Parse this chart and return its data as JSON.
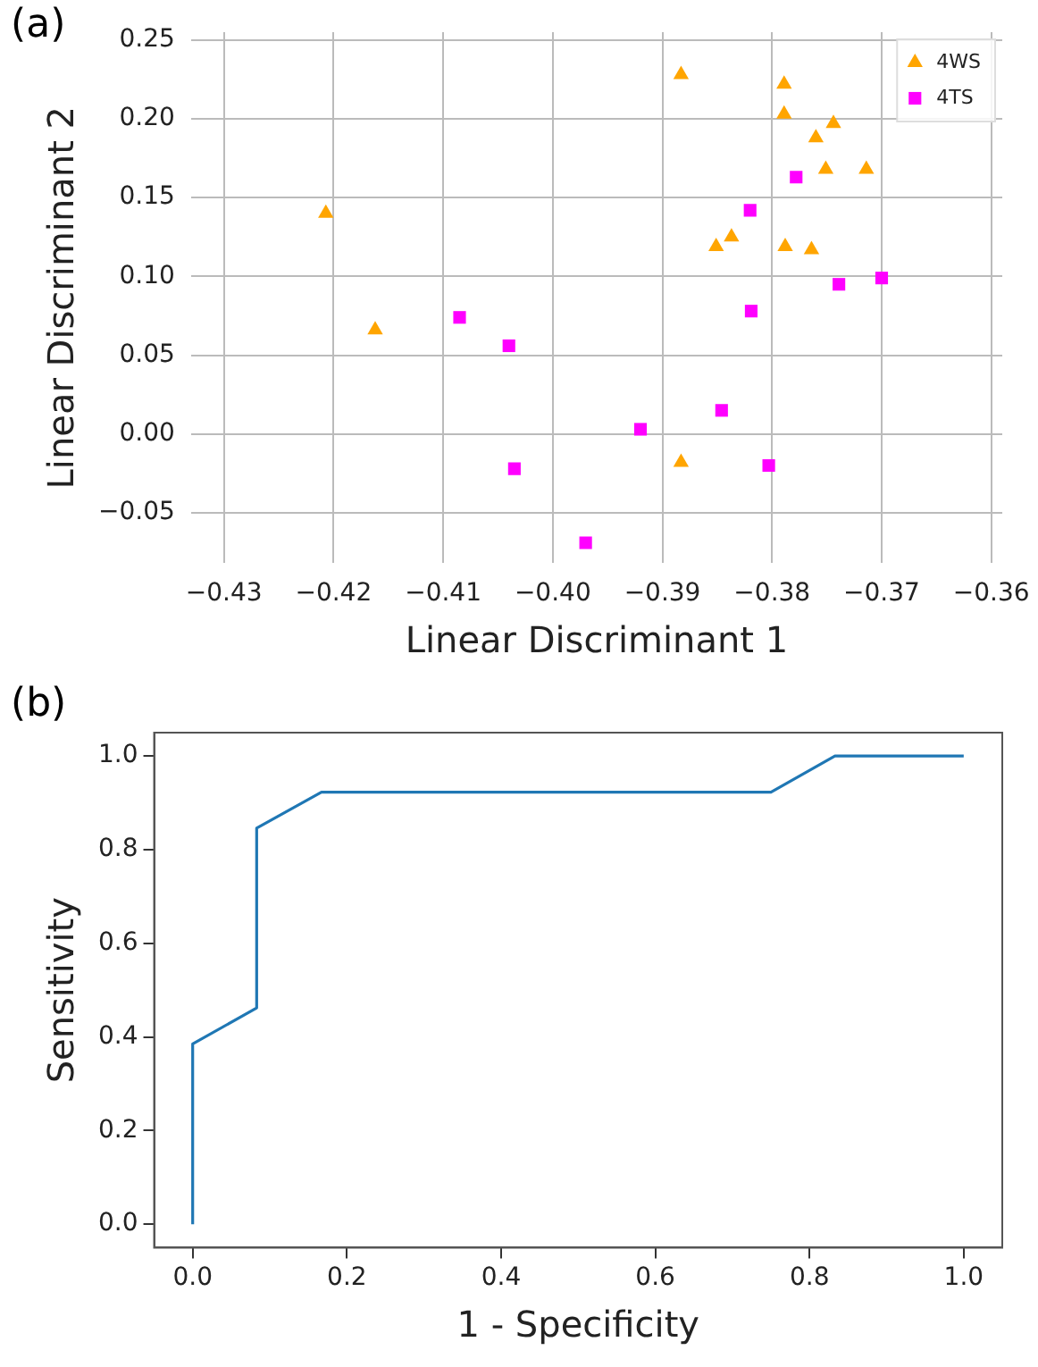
{
  "chart_data": [
    {
      "type": "scatter",
      "xlabel": "Linear Discriminant 1",
      "ylabel": "Linear Discriminant 2",
      "annotations": [
        "(a)"
      ],
      "grid": true,
      "legend": "top right",
      "xlim": [
        -0.433,
        -0.359
      ],
      "ylim": [
        -0.082,
        0.255
      ],
      "xticks": [
        {
          "value": -0.43,
          "label": "−0.43"
        },
        {
          "value": -0.42,
          "label": "−0.42"
        },
        {
          "value": -0.41,
          "label": "−0.41"
        },
        {
          "value": -0.4,
          "label": "−0.40"
        },
        {
          "value": -0.39,
          "label": "−0.39"
        },
        {
          "value": -0.38,
          "label": "−0.38"
        },
        {
          "value": -0.37,
          "label": "−0.37"
        },
        {
          "value": -0.36,
          "label": "−0.36"
        }
      ],
      "yticks": [
        {
          "value": -0.05,
          "label": "−0.05"
        },
        {
          "value": 0,
          "label": "0.00"
        },
        {
          "value": 0.05,
          "label": "0.05"
        },
        {
          "value": 0.1,
          "label": "0.10"
        },
        {
          "value": 0.15,
          "label": "0.15"
        },
        {
          "value": 0.2,
          "label": "0.20"
        },
        {
          "value": 0.25,
          "label": "0.25"
        }
      ],
      "series": [
        {
          "name": "4WS",
          "color": "#ffa500",
          "marker": "triangle",
          "x": [
            -0.4207,
            -0.4162,
            -0.3883,
            -0.3789,
            -0.3789,
            -0.3744,
            -0.376,
            -0.3751,
            -0.3714,
            -0.3851,
            -0.3837,
            -0.3788,
            -0.3764,
            -0.3883
          ],
          "values": [
            0.14,
            0.066,
            0.228,
            0.222,
            0.203,
            0.197,
            0.188,
            0.168,
            0.168,
            0.119,
            0.125,
            0.119,
            0.117,
            -0.018
          ]
        },
        {
          "name": "4TS",
          "color": "#ff00ff",
          "marker": "square",
          "x": [
            -0.4085,
            -0.404,
            -0.4035,
            -0.397,
            -0.392,
            -0.3846,
            -0.382,
            -0.3819,
            -0.3803,
            -0.3778,
            -0.3739,
            -0.37
          ],
          "values": [
            0.074,
            0.056,
            -0.022,
            -0.069,
            0.003,
            0.015,
            0.142,
            0.078,
            -0.02,
            0.163,
            0.095,
            0.099
          ]
        }
      ]
    },
    {
      "type": "line",
      "xlabel": "1 - Specificity",
      "ylabel": "Sensitivity",
      "annotations": [
        "(b)"
      ],
      "xlim": [
        -0.05,
        1.05
      ],
      "ylim": [
        -0.05,
        1.05
      ],
      "xticks": [
        {
          "value": 0,
          "label": "0.0"
        },
        {
          "value": 0.2,
          "label": "0.2"
        },
        {
          "value": 0.4,
          "label": "0.4"
        },
        {
          "value": 0.6,
          "label": "0.6"
        },
        {
          "value": 0.8,
          "label": "0.8"
        },
        {
          "value": 1,
          "label": "1.0"
        }
      ],
      "yticks": [
        {
          "value": 0,
          "label": "0.0"
        },
        {
          "value": 0.2,
          "label": "0.2"
        },
        {
          "value": 0.4,
          "label": "0.4"
        },
        {
          "value": 0.6,
          "label": "0.6"
        },
        {
          "value": 0.8,
          "label": "0.8"
        },
        {
          "value": 1,
          "label": "1.0"
        }
      ],
      "series": [
        {
          "color": "#1f77b4",
          "x": [
            0,
            0,
            0.083,
            0.083,
            0.167,
            0.75,
            0.833,
            1
          ],
          "values": [
            0,
            0.385,
            0.462,
            0.846,
            0.923,
            0.923,
            1,
            1
          ]
        }
      ]
    }
  ]
}
